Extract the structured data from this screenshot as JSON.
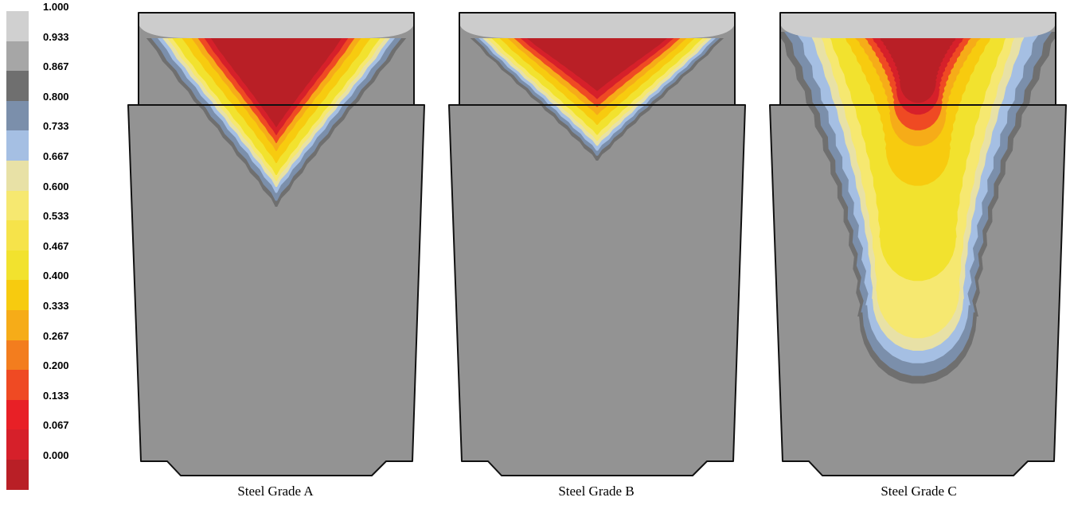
{
  "legend": {
    "labels": [
      "1.000",
      "0.933",
      "0.867",
      "0.800",
      "0.733",
      "0.667",
      "0.600",
      "0.533",
      "0.467",
      "0.400",
      "0.333",
      "0.267",
      "0.200",
      "0.133",
      "0.067",
      "0.000"
    ],
    "colors": [
      "#d0d0d0",
      "#a6a6a6",
      "#6f6f6f",
      "#7b8fab",
      "#a5bfe3",
      "#e8e1a6",
      "#f6e870",
      "#f6e34a",
      "#f2e22e",
      "#f7cb0f",
      "#f6ac18",
      "#f37d1e",
      "#ef4a23",
      "#e82026",
      "#d6202a",
      "#b91f26"
    ]
  },
  "panels": [
    {
      "caption": "Steel Grade A"
    },
    {
      "caption": "Steel Grade B"
    },
    {
      "caption": "Steel Grade C"
    }
  ]
}
